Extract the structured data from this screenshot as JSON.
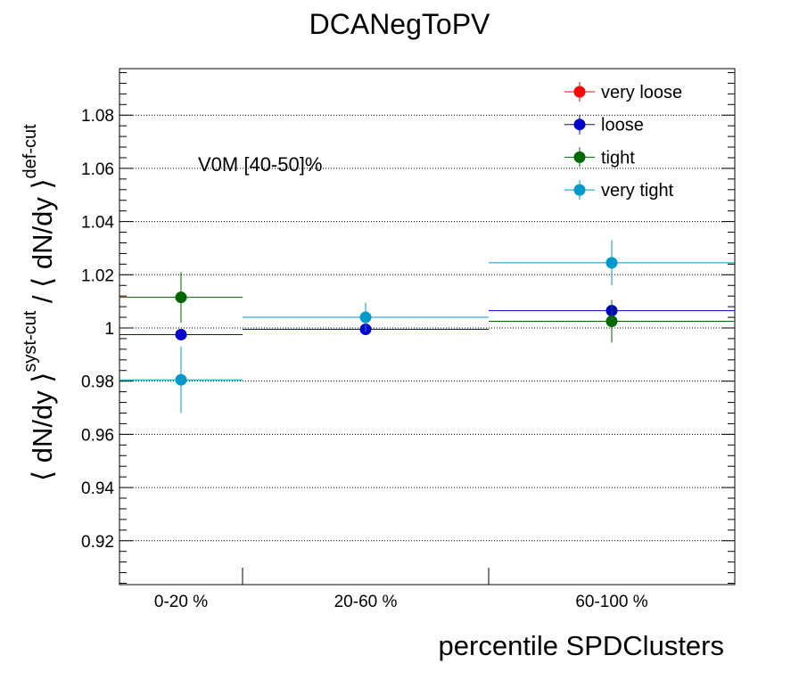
{
  "chart_data": {
    "type": "scatter",
    "title": "DCANegToPV",
    "xlabel": "percentile SPDClusters",
    "ylabel": "⟨ dN/dy ⟩^{syst-cut} / ⟨ dN/dy ⟩^{def-cut}",
    "ylabel_parts": {
      "num_base": "⟨ dN/dy ⟩",
      "num_sup": "syst-cut",
      "sep": " / ",
      "den_base": "⟨ dN/dy ⟩",
      "den_sup": "def-cut"
    },
    "categories": [
      "0-20 %",
      "20-60 %",
      "60-100 %"
    ],
    "ylim": [
      0.9035,
      1.0975
    ],
    "yticks": [
      0.92,
      0.94,
      0.96,
      0.98,
      1.0,
      1.02,
      1.04,
      1.06,
      1.08
    ],
    "ytick_labels": [
      "0.92",
      "0.94",
      "0.96",
      "0.98",
      "1",
      "1.02",
      "1.04",
      "1.06",
      "1.08"
    ],
    "grid": true,
    "legend_position": "top-right",
    "annotation": "V0M [40-50]%",
    "series": [
      {
        "name": "very loose",
        "color": "#ff0000",
        "values": [
          null,
          null,
          null
        ],
        "errors": [
          null,
          null,
          null
        ]
      },
      {
        "name": "loose",
        "color": "#0000cc",
        "values": [
          0.9975,
          0.9995,
          1.0065
        ],
        "errors": [
          0.0,
          0.0,
          0.0
        ]
      },
      {
        "name": "tight",
        "color": "#006600",
        "values": [
          1.0115,
          null,
          1.0025
        ],
        "errors": [
          0.0095,
          null,
          0.008
        ]
      },
      {
        "name": "very tight",
        "color": "#0099cc",
        "values": [
          0.9805,
          1.004,
          1.0245
        ],
        "errors": [
          0.0125,
          0.0055,
          0.0085
        ]
      }
    ]
  }
}
